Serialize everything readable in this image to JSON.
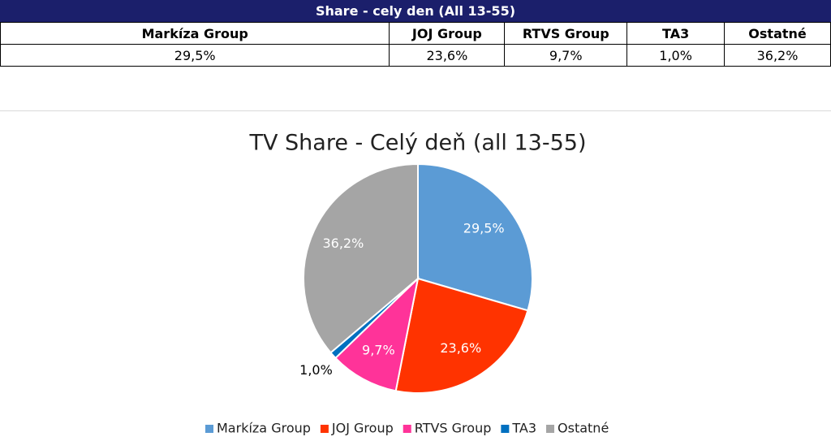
{
  "table": {
    "title": "Share - cely den (All 13-55)",
    "header_row": [
      "Markíza Group",
      "JOJ Group",
      "RTVS Group",
      "TA3",
      "Ostatné"
    ],
    "rows": [
      [
        "29,5%",
        "23,6%",
        "9,7%",
        "1,0%",
        "36,2%"
      ]
    ]
  },
  "chart_data": {
    "type": "pie",
    "title": "TV Share - Celý deň (all 13-55)",
    "categories": [
      "Markíza Group",
      "JOJ Group",
      "RTVS Group",
      "TA3",
      "Ostatné"
    ],
    "values": [
      29.5,
      23.6,
      9.7,
      1.0,
      36.2
    ],
    "value_labels": [
      "29,5%",
      "23,6%",
      "9,7%",
      "1,0%",
      "36,2%"
    ],
    "colors": [
      "#5b9bd5",
      "#ff3300",
      "#ff3399",
      "#0070c0",
      "#a5a5a5"
    ],
    "legend": "bottom"
  }
}
